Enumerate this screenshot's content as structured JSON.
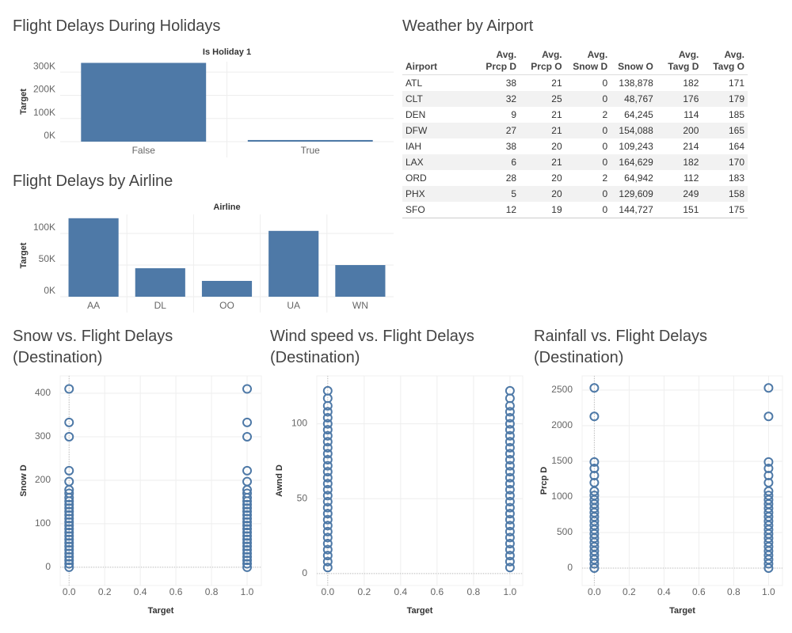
{
  "chart_data": [
    {
      "type": "bar",
      "title": "Flight Delays During Holidays",
      "header": "Is Holiday 1",
      "y_label": "Target",
      "categories": [
        "False",
        "True"
      ],
      "values": [
        340000,
        7000
      ],
      "color": "#4e79a7",
      "ylim": [
        0,
        345000
      ],
      "yticks": [
        {
          "value": 0,
          "label": "0K"
        },
        {
          "value": 100000,
          "label": "100K"
        },
        {
          "value": 200000,
          "label": "200K"
        },
        {
          "value": 300000,
          "label": "300K"
        }
      ],
      "grid": true
    },
    {
      "type": "bar",
      "title": "Flight Delays by Airline",
      "header": "Airline",
      "y_label": "Target",
      "categories": [
        "AA",
        "DL",
        "OO",
        "UA",
        "WN"
      ],
      "values": [
        124000,
        45000,
        25000,
        104000,
        50000
      ],
      "color": "#4e79a7",
      "ylim": [
        0,
        130000
      ],
      "yticks": [
        {
          "value": 0,
          "label": "0K"
        },
        {
          "value": 50000,
          "label": "50K"
        },
        {
          "value": 100000,
          "label": "100K"
        }
      ],
      "grid": true
    },
    {
      "type": "table",
      "title": "Weather by Airport",
      "columns": [
        "Airport",
        "Avg. Prcp D",
        "Avg. Prcp O",
        "Avg. Snow D",
        "Snow O",
        "Avg. Tavg D",
        "Avg. Tavg O"
      ],
      "rows": [
        [
          "ATL",
          38,
          21,
          0,
          "138,878",
          182,
          171
        ],
        [
          "CLT",
          32,
          25,
          0,
          "48,767",
          176,
          179
        ],
        [
          "DEN",
          9,
          21,
          2,
          "64,245",
          114,
          185
        ],
        [
          "DFW",
          27,
          21,
          0,
          "154,088",
          200,
          165
        ],
        [
          "IAH",
          38,
          20,
          0,
          "109,243",
          214,
          164
        ],
        [
          "LAX",
          6,
          21,
          0,
          "164,629",
          182,
          170
        ],
        [
          "ORD",
          28,
          20,
          2,
          "64,942",
          112,
          183
        ],
        [
          "PHX",
          5,
          20,
          0,
          "129,609",
          249,
          158
        ],
        [
          "SFO",
          12,
          19,
          0,
          "144,727",
          151,
          175
        ]
      ]
    },
    {
      "type": "scatter",
      "title": "Snow vs. Flight Delays (Destination)",
      "x_label": "Target",
      "y_label": "Snow D",
      "color": "#4e79a7",
      "x": [
        0,
        0,
        0,
        0,
        0,
        0,
        0,
        0,
        0,
        0,
        0,
        0,
        0,
        0,
        0,
        0,
        0,
        0,
        0,
        0,
        0,
        0,
        0,
        0,
        0,
        0,
        0,
        0,
        1,
        1,
        1,
        1,
        1,
        1,
        1,
        1,
        1,
        1,
        1,
        1,
        1,
        1,
        1,
        1,
        1,
        1,
        1,
        1,
        1,
        1,
        1,
        1,
        1,
        1,
        1,
        1
      ],
      "y": [
        0,
        8,
        16,
        24,
        32,
        40,
        48,
        56,
        64,
        72,
        80,
        88,
        96,
        104,
        112,
        120,
        128,
        136,
        144,
        152,
        160,
        170,
        178,
        197,
        222,
        300,
        333,
        410,
        0,
        8,
        16,
        24,
        32,
        40,
        48,
        56,
        64,
        72,
        80,
        88,
        96,
        104,
        112,
        120,
        128,
        136,
        144,
        152,
        160,
        170,
        178,
        197,
        222,
        300,
        333,
        410
      ],
      "xlim": [
        -0.05,
        1.08
      ],
      "ylim": [
        -42,
        440
      ],
      "xticks": [
        {
          "value": 0,
          "label": "0.0"
        },
        0.2,
        0.4,
        0.6,
        0.8,
        {
          "value": 1,
          "label": "1.0"
        }
      ],
      "yticks": [
        0,
        100,
        200,
        300,
        400
      ],
      "grid": true
    },
    {
      "type": "scatter",
      "title": "Wind speed vs. Flight Delays (Destination)",
      "x_label": "Target",
      "y_label": "Awnd D",
      "color": "#4e79a7",
      "x": [
        0,
        0,
        0,
        0,
        0,
        0,
        0,
        0,
        0,
        0,
        0,
        0,
        0,
        0,
        0,
        0,
        0,
        0,
        0,
        0,
        0,
        0,
        0,
        0,
        0,
        0,
        0,
        0,
        0,
        0,
        1,
        1,
        1,
        1,
        1,
        1,
        1,
        1,
        1,
        1,
        1,
        1,
        1,
        1,
        1,
        1,
        1,
        1,
        1,
        1,
        1,
        1,
        1,
        1,
        1,
        1,
        1,
        1,
        1,
        1
      ],
      "y": [
        4,
        8,
        12,
        16,
        20,
        24,
        28,
        32,
        36,
        40,
        44,
        48,
        52,
        56,
        60,
        64,
        68,
        72,
        76,
        80,
        84,
        88,
        92,
        96,
        100,
        104,
        108,
        112,
        117,
        122,
        4,
        8,
        12,
        16,
        20,
        24,
        28,
        32,
        36,
        40,
        44,
        48,
        52,
        56,
        60,
        64,
        68,
        72,
        76,
        80,
        84,
        88,
        92,
        96,
        100,
        104,
        108,
        112,
        117,
        122
      ],
      "xlim": [
        -0.06,
        1.07
      ],
      "ylim": [
        -8,
        132
      ],
      "xticks": [
        {
          "value": 0,
          "label": "0.0"
        },
        0.2,
        0.4,
        0.6,
        0.8,
        {
          "value": 1,
          "label": "1.0"
        }
      ],
      "yticks": [
        0,
        50,
        100
      ],
      "grid": true
    },
    {
      "type": "scatter",
      "title": "Rainfall vs. Flight Delays (Destination)",
      "x_label": "Target",
      "y_label": "Prcp D",
      "color": "#4e79a7",
      "x": [
        0,
        0,
        0,
        0,
        0,
        0,
        0,
        0,
        0,
        0,
        0,
        0,
        0,
        0,
        0,
        0,
        0,
        0,
        0,
        0,
        0,
        0,
        0,
        0,
        0,
        1,
        1,
        1,
        1,
        1,
        1,
        1,
        1,
        1,
        1,
        1,
        1,
        1,
        1,
        1,
        1,
        1,
        1,
        1,
        1,
        1,
        1,
        1,
        1,
        1
      ],
      "y": [
        0,
        60,
        120,
        180,
        240,
        300,
        360,
        420,
        480,
        540,
        600,
        660,
        720,
        780,
        840,
        900,
        960,
        1020,
        1080,
        1200,
        1300,
        1400,
        1490,
        2130,
        2530,
        0,
        60,
        120,
        180,
        240,
        300,
        360,
        420,
        480,
        540,
        600,
        660,
        720,
        780,
        840,
        900,
        960,
        1020,
        1080,
        1200,
        1300,
        1400,
        1490,
        2130,
        2530
      ],
      "xlim": [
        -0.07,
        1.08
      ],
      "ylim": [
        -245,
        2700
      ],
      "xticks": [
        {
          "value": 0,
          "label": "0.0"
        },
        0.2,
        0.4,
        0.6,
        0.8,
        {
          "value": 1,
          "label": "1.0"
        }
      ],
      "yticks": [
        0,
        500,
        1000,
        1500,
        2000,
        2500
      ],
      "grid": true
    }
  ]
}
